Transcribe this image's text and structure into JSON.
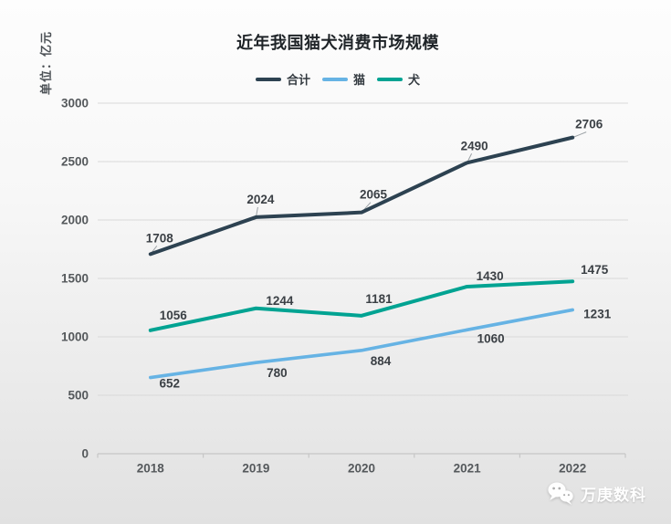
{
  "page": {
    "title": "近年我国猫犬消费市场规模",
    "unit_label": "单位：亿元"
  },
  "watermark": {
    "brand": "万庚数科",
    "icon": "wechat-icon"
  },
  "colors": {
    "total": "#2d4251",
    "cat": "#66b3e4",
    "dog": "#00a392",
    "grid": "#d9d9d9",
    "axis": "#c6c6c6",
    "leader": "#9aa0a4",
    "tick_label": "#55595c",
    "data_label": "#3b4045",
    "title": "#1f2428",
    "watermark": "#ffffff"
  },
  "chart_data": {
    "type": "line",
    "title": "近年我国猫犬消费市场规模",
    "ylabel": "单位：亿元",
    "categories": [
      "2018",
      "2019",
      "2020",
      "2021",
      "2022"
    ],
    "series": [
      {
        "name": "合计",
        "key": "total",
        "color": "#2d4251",
        "values": [
          1708,
          2024,
          2065,
          2490,
          2706
        ]
      },
      {
        "name": "猫",
        "key": "cat",
        "color": "#66b3e4",
        "values": [
          652,
          780,
          884,
          1060,
          1231
        ]
      },
      {
        "name": "犬",
        "key": "dog",
        "color": "#00a392",
        "values": [
          1056,
          1244,
          1181,
          1430,
          1475
        ]
      }
    ],
    "ylim": [
      0,
      3000
    ],
    "yticks": [
      0,
      500,
      1000,
      1500,
      2000,
      2500,
      3000
    ],
    "grid": true,
    "legend_position": "top",
    "data_labels": true
  }
}
